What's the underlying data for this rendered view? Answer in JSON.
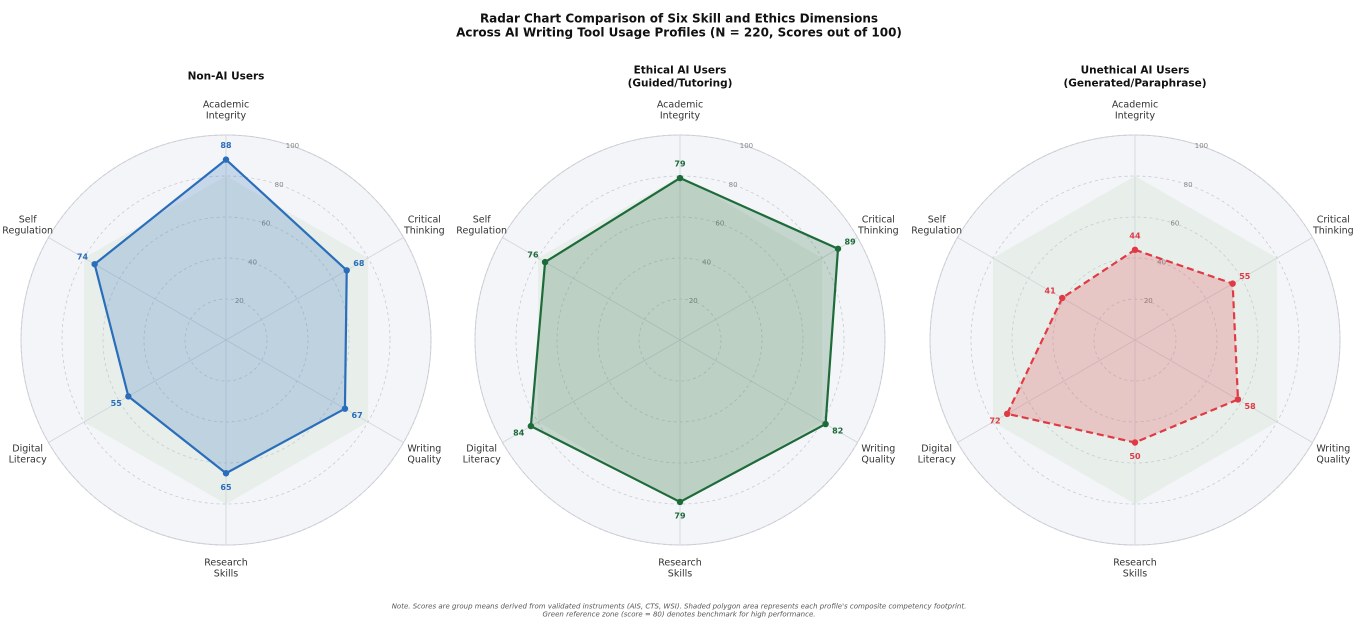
{
  "title": "Radar Chart Comparison of Six Skill and Ethics Dimensions\nAcross AI Writing Tool Usage Profiles (N = 220, Scores out of 100)",
  "note": "Note. Scores are group means derived from validated instruments (AIS, CTS, WSI). Shaded polygon area represents each profile's composite competency footprint.\nGreen reference zone (score = 80) denotes benchmark for high performance.",
  "chart_data": [
    {
      "type": "radar",
      "title": "Non-AI Users",
      "categories": [
        "Academic\nIntegrity",
        "Critical\nThinking",
        "Writing\nQuality",
        "Research\nSkills",
        "Digital\nLiteracy",
        "Self\nRegulation"
      ],
      "values": [
        88,
        68,
        67,
        65,
        55,
        74
      ],
      "color": "#2a6ebb",
      "line_style": "solid",
      "ylim": [
        0,
        100
      ],
      "yticks": [
        20,
        40,
        60,
        80,
        100
      ],
      "reference_value": 80,
      "reference_color": "#dfe9df",
      "grid": true
    },
    {
      "type": "radar",
      "title": "Ethical AI Users\n(Guided/Tutoring)",
      "categories": [
        "Academic\nIntegrity",
        "Critical\nThinking",
        "Writing\nQuality",
        "Research\nSkills",
        "Digital\nLiteracy",
        "Self\nRegulation"
      ],
      "values": [
        79,
        89,
        82,
        79,
        84,
        76
      ],
      "color": "#1e6b3a",
      "line_style": "solid",
      "ylim": [
        0,
        100
      ],
      "yticks": [
        20,
        40,
        60,
        80,
        100
      ],
      "reference_value": 80,
      "reference_color": "#dfe9df",
      "grid": true
    },
    {
      "type": "radar",
      "title": "Unethical AI Users\n(Generated/Paraphrase)",
      "categories": [
        "Academic\nIntegrity",
        "Critical\nThinking",
        "Writing\nQuality",
        "Research\nSkills",
        "Digital\nLiteracy",
        "Self\nRegulation"
      ],
      "values": [
        44,
        55,
        58,
        50,
        72,
        41
      ],
      "color": "#e03a45",
      "line_style": "dashed",
      "ylim": [
        0,
        100
      ],
      "yticks": [
        20,
        40,
        60,
        80,
        100
      ],
      "reference_value": 80,
      "reference_color": "#dfe9df",
      "grid": true
    }
  ]
}
